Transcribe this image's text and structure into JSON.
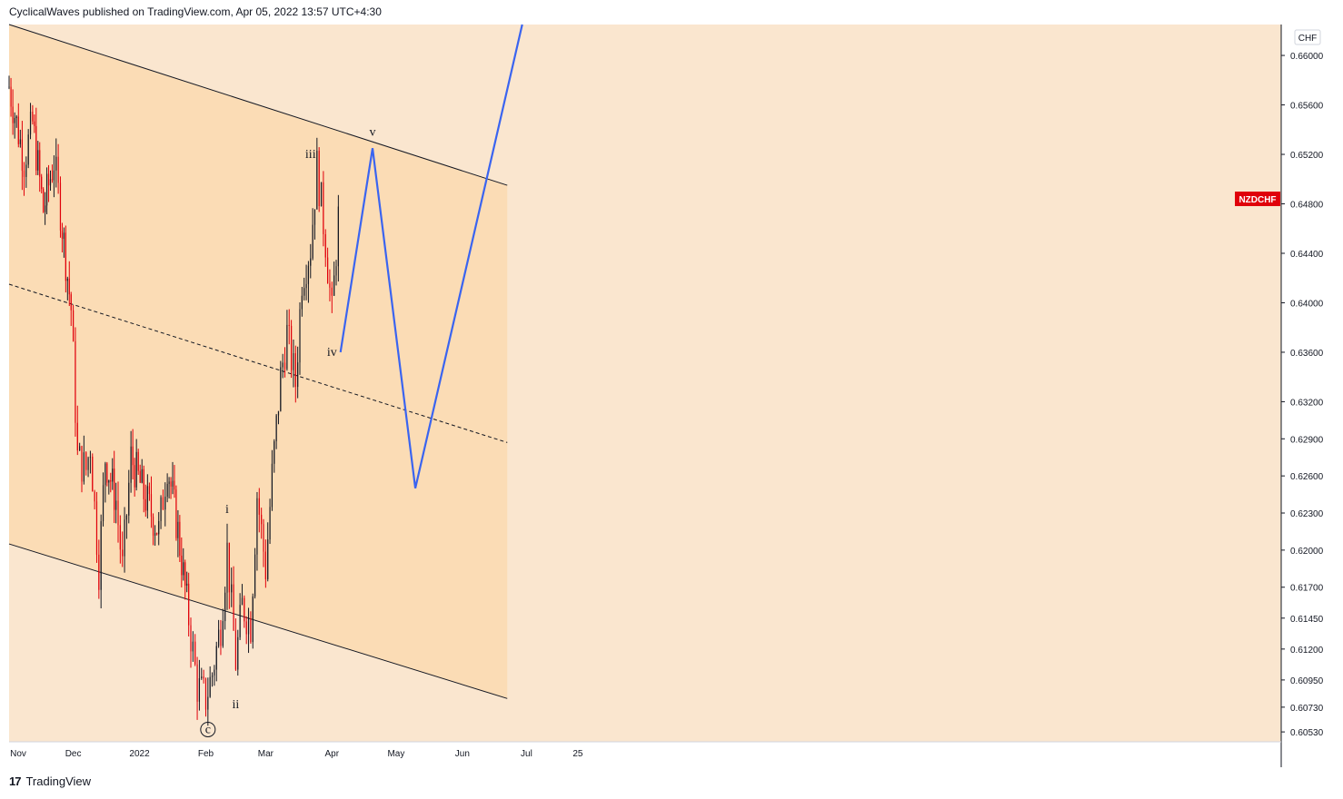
{
  "header": {
    "published_text": "CyclicalWaves published on TradingView.com, Apr 05, 2022 13:57 UTC+4:30"
  },
  "footer": {
    "brand": "TradingView",
    "logo_glyph": "17"
  },
  "colors": {
    "up": "#131722",
    "down": "#e0000a",
    "channel_fill": "#fbdcb5",
    "bg_fill": "#fae6cf",
    "projection": "#3a64f0",
    "badge": "#e0000a"
  },
  "chart_data": {
    "type": "candlestick",
    "symbol": "NZDCHF",
    "currency": "CHF",
    "price_tag": "NZDCHF",
    "ylim": [
      0.6045,
      0.6625
    ],
    "y_ticks": [
      "0.66000",
      "0.65600",
      "0.65200",
      "0.64800",
      "0.64400",
      "0.64000",
      "0.63600",
      "0.63200",
      "0.62900",
      "0.62600",
      "0.62300",
      "0.62000",
      "0.61700",
      "0.61450",
      "0.61200",
      "0.60950",
      "0.60730",
      "0.60530"
    ],
    "x_ticks": [
      "Nov",
      "Dec",
      "2022",
      "Feb",
      "Mar",
      "Apr",
      "May",
      "Jun",
      "Jul",
      "25"
    ],
    "price_path": [
      {
        "date": "2021-11-01",
        "price": 0.6575
      },
      {
        "date": "2021-11-08",
        "price": 0.6515
      },
      {
        "date": "2021-11-12",
        "price": 0.6545
      },
      {
        "date": "2021-11-17",
        "price": 0.6475
      },
      {
        "date": "2021-11-22",
        "price": 0.6515
      },
      {
        "date": "2021-11-25",
        "price": 0.6475
      },
      {
        "date": "2021-11-30",
        "price": 0.6395
      },
      {
        "date": "2021-12-03",
        "price": 0.6275
      },
      {
        "date": "2021-12-07",
        "price": 0.6265
      },
      {
        "date": "2021-12-09",
        "price": 0.6285
      },
      {
        "date": "2021-12-13",
        "price": 0.6185
      },
      {
        "date": "2021-12-16",
        "price": 0.6275
      },
      {
        "date": "2021-12-21",
        "price": 0.624
      },
      {
        "date": "2021-12-24",
        "price": 0.6185
      },
      {
        "date": "2021-12-28",
        "price": 0.6275
      },
      {
        "date": "2022-01-03",
        "price": 0.6245
      },
      {
        "date": "2022-01-10",
        "price": 0.6215
      },
      {
        "date": "2022-01-14",
        "price": 0.627
      },
      {
        "date": "2022-01-19",
        "price": 0.6215
      },
      {
        "date": "2022-01-24",
        "price": 0.6145
      },
      {
        "date": "2022-01-28",
        "price": 0.609
      },
      {
        "date": "2022-02-01",
        "price": 0.608
      },
      {
        "date": "2022-02-04",
        "price": 0.61
      },
      {
        "date": "2022-02-08",
        "price": 0.614
      },
      {
        "date": "2022-02-11",
        "price": 0.62
      },
      {
        "date": "2022-02-15",
        "price": 0.611
      },
      {
        "date": "2022-02-18",
        "price": 0.6155
      },
      {
        "date": "2022-02-22",
        "price": 0.614
      },
      {
        "date": "2022-02-25",
        "price": 0.6245
      },
      {
        "date": "2022-03-01",
        "price": 0.6185
      },
      {
        "date": "2022-03-04",
        "price": 0.626
      },
      {
        "date": "2022-03-08",
        "price": 0.634
      },
      {
        "date": "2022-03-11",
        "price": 0.6375
      },
      {
        "date": "2022-03-15",
        "price": 0.6335
      },
      {
        "date": "2022-03-18",
        "price": 0.642
      },
      {
        "date": "2022-03-22",
        "price": 0.6445
      },
      {
        "date": "2022-03-25",
        "price": 0.651
      },
      {
        "date": "2022-03-29",
        "price": 0.645
      },
      {
        "date": "2022-04-01",
        "price": 0.639
      },
      {
        "date": "2022-04-05",
        "price": 0.6495
      }
    ],
    "projection": [
      {
        "date": "2022-04-05",
        "price": 0.636
      },
      {
        "date": "2022-04-20",
        "price": 0.6525
      },
      {
        "date": "2022-05-10",
        "price": 0.625
      },
      {
        "date": "2022-06-29",
        "price": 0.6625
      }
    ],
    "channel": {
      "upper": [
        {
          "date": "2021-11-01",
          "price": 0.6625
        },
        {
          "date": "2022-06-22",
          "price": 0.6495
        }
      ],
      "middle": [
        {
          "date": "2021-11-01",
          "price": 0.6415
        },
        {
          "date": "2022-06-22",
          "price": 0.6287
        }
      ],
      "lower": [
        {
          "date": "2021-11-01",
          "price": 0.6205
        },
        {
          "date": "2022-06-22",
          "price": 0.608
        }
      ]
    },
    "wave_labels": [
      {
        "text": "i",
        "date": "2022-02-11",
        "price": 0.623
      },
      {
        "text": "ii",
        "date": "2022-02-15",
        "price": 0.6072
      },
      {
        "text": "iii",
        "date": "2022-03-22",
        "price": 0.6517
      },
      {
        "text": "iv",
        "date": "2022-04-01",
        "price": 0.6357
      },
      {
        "text": "v",
        "date": "2022-04-20",
        "price": 0.6535
      },
      {
        "text": "c",
        "date": "2022-02-02",
        "price": 0.6052
      }
    ]
  }
}
